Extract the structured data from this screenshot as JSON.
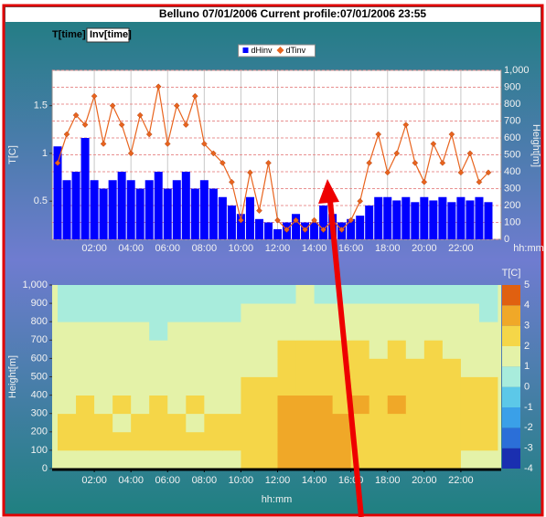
{
  "window": {
    "title": "Belluno 07/01/2006 Current profile:07/01/2006 23:55"
  },
  "tabs": [
    "T[time]",
    "Inv[time]"
  ],
  "chart_data": [
    {
      "type": "combo",
      "x": [
        0,
        0.5,
        1,
        1.5,
        2,
        2.5,
        3,
        3.5,
        4,
        4.5,
        5,
        5.5,
        6,
        6.5,
        7,
        7.5,
        8,
        8.5,
        9,
        9.5,
        10,
        10.5,
        11,
        11.5,
        12,
        12.5,
        13,
        13.5,
        14,
        14.5,
        15,
        15.5,
        16,
        16.5,
        17,
        17.5,
        18,
        18.5,
        19,
        19.5,
        20,
        20.5,
        21,
        21.5,
        22,
        22.5,
        23,
        23.5
      ],
      "series": [
        {
          "name": "dHinv",
          "color": "#0000ff",
          "type": "bar",
          "axis": "y2",
          "values": [
            550,
            350,
            400,
            600,
            350,
            300,
            350,
            400,
            350,
            300,
            350,
            400,
            300,
            350,
            400,
            300,
            350,
            300,
            250,
            200,
            150,
            250,
            120,
            100,
            60,
            100,
            150,
            100,
            100,
            200,
            150,
            100,
            120,
            140,
            200,
            250,
            250,
            230,
            250,
            220,
            250,
            230,
            250,
            220,
            250,
            230,
            250,
            220
          ]
        },
        {
          "name": "dTinv",
          "color": "#e8641e",
          "type": "line",
          "values": [
            0.9,
            1.2,
            1.4,
            1.3,
            1.6,
            1.1,
            1.5,
            1.3,
            1.0,
            1.4,
            1.2,
            1.7,
            1.1,
            1.5,
            1.3,
            1.6,
            1.1,
            1.0,
            0.9,
            0.7,
            0.3,
            0.8,
            0.4,
            0.9,
            0.3,
            0.2,
            0.3,
            0.2,
            0.3,
            0.2,
            0.3,
            0.2,
            0.3,
            0.5,
            0.9,
            1.2,
            0.8,
            1.0,
            1.3,
            0.9,
            0.7,
            1.1,
            0.9,
            1.2,
            0.8,
            1.0,
            0.7,
            0.8
          ]
        }
      ],
      "ylabel": "T[C]",
      "y2label": "Height[m]",
      "xlabel": "hh:mm",
      "xlim": [
        -0.3,
        24.2
      ],
      "xticks": [
        {
          "value": 2,
          "label": "02:00"
        },
        {
          "value": 4,
          "label": "04:00"
        },
        {
          "value": 6,
          "label": "06:00"
        },
        {
          "value": 8,
          "label": "08:00"
        },
        {
          "value": 10,
          "label": "10:00"
        },
        {
          "value": 12,
          "label": "12:00"
        },
        {
          "value": 14,
          "label": "14:00"
        },
        {
          "value": 16,
          "label": "16:00"
        },
        {
          "value": 18,
          "label": "18:00"
        },
        {
          "value": 20,
          "label": "20:00"
        },
        {
          "value": 22,
          "label": "22:00"
        }
      ],
      "ylim": [
        0.1,
        1.87
      ],
      "yticks": [
        0.5,
        1,
        1.5
      ],
      "y2lim": [
        0,
        1000
      ],
      "y2ticks": [
        0,
        100,
        200,
        300,
        400,
        500,
        600,
        700,
        800,
        900,
        {
          "value": 1000,
          "label": "1,000"
        }
      ],
      "grid": true,
      "legend": "top"
    },
    {
      "type": "heatmap",
      "x": [
        0.5,
        1.5,
        2.5,
        3.5,
        4.5,
        5.5,
        6.5,
        7.5,
        8.5,
        9.5,
        10.5,
        11.5,
        12.5,
        13.5,
        14.5,
        15.5,
        16.5,
        17.5,
        18.5,
        19.5,
        20.5,
        21.5,
        22.5,
        23.5
      ],
      "y": [
        50,
        150,
        250,
        350,
        450,
        550,
        650,
        750,
        850,
        950
      ],
      "z": [
        [
          1.5,
          1.5,
          1.5,
          1.5,
          1.5,
          1.5,
          1.5,
          1.5,
          1.5,
          1.5,
          2.5,
          2.5,
          3.2,
          3.3,
          3.4,
          3.1,
          2.2,
          2.2,
          2.2,
          2.2,
          2.2,
          2.2,
          1.8,
          1.8
        ],
        [
          2.0,
          2.0,
          2.0,
          2.0,
          2.0,
          2.0,
          2.0,
          2.0,
          2.0,
          2.0,
          2.5,
          2.6,
          3.4,
          3.8,
          3.7,
          3.2,
          2.6,
          2.6,
          2.6,
          2.6,
          2.6,
          2.6,
          2.2,
          2.2
        ],
        [
          2.1,
          2.0,
          2.2,
          1.9,
          2.1,
          2.0,
          2.2,
          1.9,
          2.1,
          2.0,
          2.6,
          2.7,
          3.3,
          3.8,
          3.6,
          3.1,
          2.8,
          2.9,
          2.8,
          2.7,
          2.8,
          2.6,
          2.3,
          2.2
        ],
        [
          1.9,
          2.1,
          1.8,
          2.0,
          1.9,
          2.1,
          1.8,
          2.0,
          1.9,
          1.8,
          2.4,
          2.5,
          3.0,
          3.2,
          3.1,
          2.9,
          3.0,
          2.9,
          3.0,
          2.8,
          2.9,
          2.7,
          2.3,
          2.2
        ],
        [
          1.8,
          1.9,
          1.7,
          1.9,
          1.8,
          1.7,
          1.9,
          1.8,
          1.7,
          1.8,
          2.0,
          2.1,
          2.8,
          2.9,
          2.8,
          2.7,
          2.8,
          2.7,
          2.8,
          2.6,
          2.7,
          2.5,
          2.2,
          2.1
        ],
        [
          1.5,
          1.6,
          1.4,
          1.6,
          1.5,
          1.4,
          1.6,
          1.5,
          1.4,
          1.6,
          1.8,
          1.9,
          2.5,
          2.6,
          2.5,
          2.4,
          2.4,
          2.3,
          2.4,
          2.2,
          2.3,
          2.1,
          1.9,
          1.8
        ],
        [
          1.3,
          1.2,
          1.4,
          1.2,
          1.3,
          1.1,
          1.3,
          1.2,
          1.3,
          1.4,
          1.6,
          1.7,
          2.2,
          2.3,
          2.2,
          2.1,
          2.0,
          1.9,
          2.1,
          1.9,
          2.0,
          1.8,
          1.6,
          1.5
        ],
        [
          1.1,
          1.0,
          1.2,
          1.0,
          1.1,
          0.9,
          1.1,
          1.0,
          1.1,
          1.2,
          1.3,
          1.4,
          1.8,
          1.9,
          1.8,
          1.7,
          1.6,
          1.5,
          1.7,
          1.5,
          1.6,
          1.4,
          1.3,
          1.2
        ],
        [
          0.8,
          0.7,
          0.9,
          0.6,
          0.8,
          0.7,
          0.9,
          0.8,
          0.7,
          0.9,
          1.1,
          1.2,
          1.3,
          1.4,
          1.3,
          1.2,
          1.2,
          1.1,
          1.3,
          1.1,
          1.2,
          1.0,
          1.0,
          0.9
        ],
        [
          0.5,
          0.4,
          0.6,
          0.3,
          0.5,
          0.4,
          0.6,
          0.5,
          0.4,
          0.6,
          0.8,
          0.9,
          0.9,
          1.0,
          0.9,
          0.8,
          0.8,
          0.7,
          0.9,
          0.7,
          0.8,
          0.6,
          0.7,
          0.6
        ]
      ],
      "xlabel": "hh:mm",
      "ylabel": "Height[m]",
      "xlim": [
        -0.3,
        24.2
      ],
      "xticks": [
        {
          "value": 2,
          "label": "02:00"
        },
        {
          "value": 4,
          "label": "04:00"
        },
        {
          "value": 6,
          "label": "06:00"
        },
        {
          "value": 8,
          "label": "08:00"
        },
        {
          "value": 10,
          "label": "10:00"
        },
        {
          "value": 12,
          "label": "12:00"
        },
        {
          "value": 14,
          "label": "14:00"
        },
        {
          "value": 16,
          "label": "16:00"
        },
        {
          "value": 18,
          "label": "18:00"
        },
        {
          "value": 20,
          "label": "20:00"
        },
        {
          "value": 22,
          "label": "22:00"
        }
      ],
      "ylim": [
        0,
        1000
      ],
      "yticks": [
        0,
        100,
        200,
        300,
        400,
        500,
        600,
        700,
        800,
        900,
        {
          "value": 1000,
          "label": "1,000"
        }
      ],
      "colorbar": {
        "title": "T[C]",
        "levels": [
          -4,
          -3,
          -2,
          -1,
          0,
          1,
          2,
          3,
          4,
          5
        ],
        "colors": [
          "#1a2fb0",
          "#2b6fd8",
          "#3aa0e8",
          "#5cc8e8",
          "#a8ecdc",
          "#e4f2a8",
          "#f5d648",
          "#f0a828",
          "#e06010"
        ]
      }
    }
  ]
}
